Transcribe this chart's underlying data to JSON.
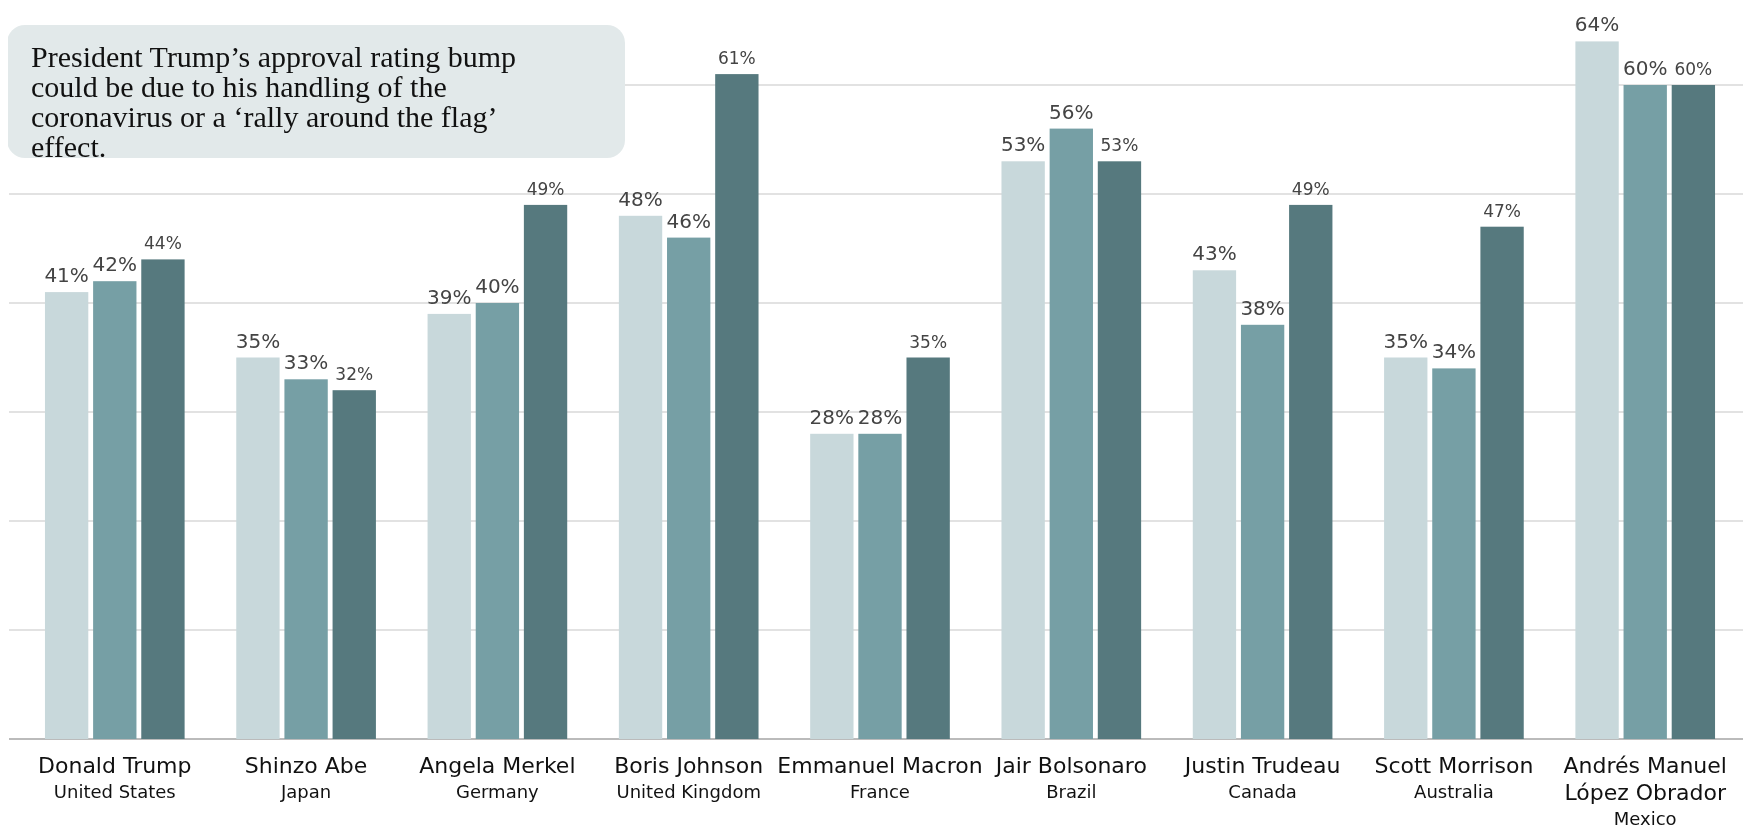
{
  "chart_data": {
    "type": "bar",
    "categories": [
      "Donald Trump\nUnited States",
      "Shinzo Abe\nJapan",
      "Angela Merkel\nGermany",
      "Boris Johnson\nUnited Kingdom",
      "Emmanuel Macron\nFrance",
      "Jair Bolsonaro\nBrazil",
      "Justin Trudeau\nCanada",
      "Scott Morrison\nAustralia",
      "Andrés Manuel López Obrador\nMexico"
    ],
    "series": [
      {
        "color": "#c8d8db",
        "values": [
          41,
          35,
          39,
          48,
          28,
          53,
          43,
          35,
          64
        ],
        "value_labels": [
          "41%",
          "35%",
          "39%",
          "48%",
          "28%",
          "53%",
          "43%",
          "35%",
          "64%"
        ]
      },
      {
        "color": "#769fa5",
        "values": [
          42,
          33,
          40,
          46,
          28,
          56,
          38,
          34,
          60
        ],
        "value_labels": [
          "42%",
          "33%",
          "40%",
          "46%",
          "28%",
          "56%",
          "38%",
          "34%",
          "60%"
        ]
      },
      {
        "color": "#56797e",
        "values": [
          44,
          32,
          49,
          61,
          35,
          53,
          49,
          47,
          60
        ],
        "value_labels": [
          "44%",
          "32%",
          "49%",
          "61%",
          "35%",
          "53%",
          "49%",
          "47%",
          "60%"
        ]
      }
    ],
    "yticks": [
      {
        "value": 0,
        "label": null
      },
      {
        "value": 10,
        "label": null
      },
      {
        "value": 20,
        "label": null
      },
      {
        "value": 30,
        "label": null
      },
      {
        "value": 40,
        "label": null
      },
      {
        "value": 50,
        "label": null
      },
      {
        "value": 60,
        "label": null
      }
    ],
    "grid": "y",
    "tick_labels": "x",
    "annotations": [
      "President Trump’s approval rating bump could be due to his handling of the coronavirus or a ‘rally around the flag’ effect."
    ]
  }
}
